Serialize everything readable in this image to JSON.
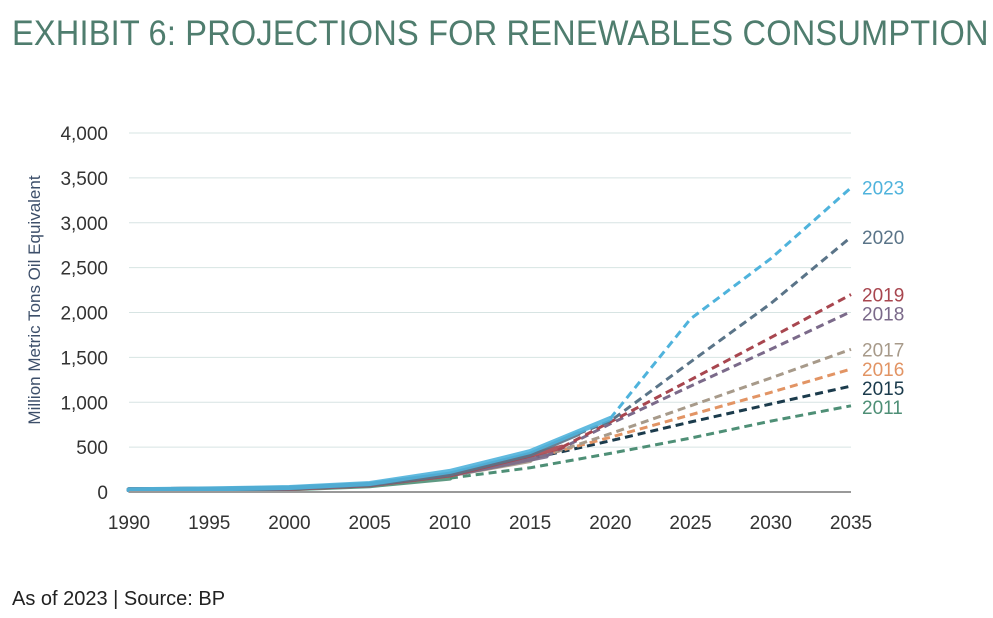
{
  "title": "EXHIBIT 6: PROJECTIONS FOR RENEWABLES CONSUMPTION",
  "footnote": "As of 2023 | Source: BP",
  "chart_data": {
    "type": "line",
    "xlabel": "",
    "ylabel": "Million Metric Tons Oil Equivalent",
    "xlim": [
      1990,
      2035
    ],
    "ylim": [
      0,
      4000
    ],
    "xticks": [
      1990,
      1995,
      2000,
      2005,
      2010,
      2015,
      2020,
      2025,
      2030,
      2035
    ],
    "yticks": [
      0,
      500,
      1000,
      1500,
      2000,
      2500,
      3000,
      3500,
      4000
    ],
    "ytick_labels": [
      "0",
      "500",
      "1,000",
      "1,500",
      "2,000",
      "2,500",
      "3,000",
      "3,500",
      "4,000"
    ],
    "grid": "horizontal",
    "legend": "labels at line ends (right)",
    "series": [
      {
        "name": "2011",
        "color": "#4e8f76",
        "history": [
          [
            1990,
            25
          ],
          [
            1995,
            28
          ],
          [
            2000,
            35
          ],
          [
            2005,
            70
          ],
          [
            2010,
            155
          ]
        ],
        "projection": [
          [
            2010,
            155
          ],
          [
            2015,
            270
          ],
          [
            2020,
            430
          ],
          [
            2025,
            600
          ],
          [
            2030,
            790
          ],
          [
            2035,
            960
          ]
        ]
      },
      {
        "name": "2015",
        "color": "#1b3b4c",
        "history": [
          [
            1990,
            25
          ],
          [
            1995,
            30
          ],
          [
            2000,
            40
          ],
          [
            2005,
            80
          ],
          [
            2010,
            190
          ],
          [
            2013,
            300
          ]
        ],
        "projection": [
          [
            2013,
            300
          ],
          [
            2015,
            370
          ],
          [
            2020,
            570
          ],
          [
            2025,
            780
          ],
          [
            2030,
            980
          ],
          [
            2035,
            1180
          ]
        ]
      },
      {
        "name": "2016",
        "color": "#e29464",
        "history": [
          [
            1990,
            25
          ],
          [
            1995,
            30
          ],
          [
            2000,
            40
          ],
          [
            2005,
            80
          ],
          [
            2010,
            190
          ],
          [
            2014,
            330
          ]
        ],
        "projection": [
          [
            2014,
            330
          ],
          [
            2015,
            370
          ],
          [
            2020,
            610
          ],
          [
            2025,
            860
          ],
          [
            2030,
            1110
          ],
          [
            2035,
            1370
          ]
        ]
      },
      {
        "name": "2017",
        "color": "#a79a8a",
        "history": [
          [
            1990,
            25
          ],
          [
            1995,
            30
          ],
          [
            2000,
            40
          ],
          [
            2005,
            80
          ],
          [
            2010,
            190
          ],
          [
            2015,
            350
          ]
        ],
        "projection": [
          [
            2015,
            350
          ],
          [
            2020,
            650
          ],
          [
            2025,
            960
          ],
          [
            2030,
            1270
          ],
          [
            2035,
            1590
          ]
        ]
      },
      {
        "name": "2018",
        "color": "#7b6a8a",
        "history": [
          [
            1990,
            25
          ],
          [
            1995,
            30
          ],
          [
            2000,
            40
          ],
          [
            2005,
            80
          ],
          [
            2010,
            190
          ],
          [
            2016,
            400
          ]
        ],
        "projection": [
          [
            2016,
            400
          ],
          [
            2020,
            760
          ],
          [
            2025,
            1180
          ],
          [
            2030,
            1590
          ],
          [
            2035,
            2010
          ]
        ]
      },
      {
        "name": "2019",
        "color": "#a8464f",
        "history": [
          [
            1990,
            25
          ],
          [
            1995,
            30
          ],
          [
            2000,
            40
          ],
          [
            2005,
            80
          ],
          [
            2010,
            190
          ],
          [
            2017,
            500
          ]
        ],
        "projection": [
          [
            2017,
            500
          ],
          [
            2020,
            780
          ],
          [
            2025,
            1250
          ],
          [
            2030,
            1720
          ],
          [
            2035,
            2200
          ]
        ]
      },
      {
        "name": "2020",
        "color": "#5a7488",
        "history": [
          [
            1990,
            25
          ],
          [
            1995,
            30
          ],
          [
            2000,
            45
          ],
          [
            2005,
            85
          ],
          [
            2010,
            200
          ],
          [
            2015,
            420
          ],
          [
            2018,
            650
          ]
        ],
        "projection": [
          [
            2018,
            650
          ],
          [
            2020,
            790
          ],
          [
            2025,
            1450
          ],
          [
            2030,
            2100
          ],
          [
            2035,
            2840
          ]
        ]
      },
      {
        "name": "2023",
        "color": "#4fb3dc",
        "history": [
          [
            1990,
            25
          ],
          [
            1995,
            35
          ],
          [
            2000,
            50
          ],
          [
            2005,
            95
          ],
          [
            2010,
            230
          ],
          [
            2015,
            450
          ],
          [
            2020,
            820
          ]
        ],
        "projection": [
          [
            2020,
            820
          ],
          [
            2025,
            1930
          ],
          [
            2030,
            2600
          ],
          [
            2035,
            3390
          ]
        ]
      }
    ]
  }
}
